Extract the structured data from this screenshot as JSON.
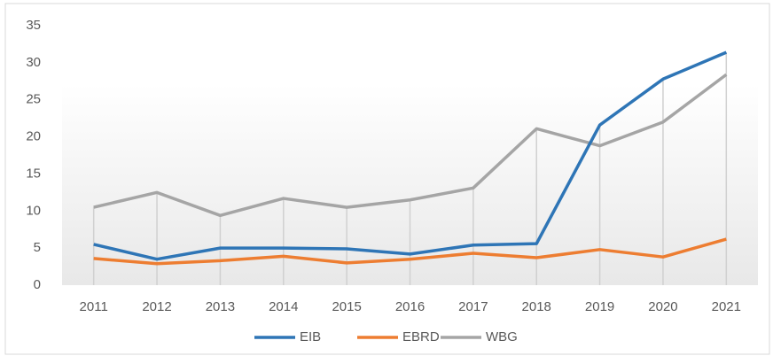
{
  "chart_data": {
    "type": "line",
    "categories": [
      "2011",
      "2012",
      "2013",
      "2014",
      "2015",
      "2016",
      "2017",
      "2018",
      "2019",
      "2020",
      "2021"
    ],
    "series": [
      {
        "name": "EIB",
        "color": "#2e75b6",
        "values": [
          5.5,
          3.5,
          5.0,
          5.0,
          4.9,
          4.2,
          5.4,
          5.6,
          21.6,
          27.8,
          31.4
        ]
      },
      {
        "name": "EBRD",
        "color": "#ed7d31",
        "values": [
          3.6,
          2.9,
          3.3,
          3.9,
          3.0,
          3.5,
          4.3,
          3.7,
          4.8,
          3.8,
          6.2
        ]
      },
      {
        "name": "WBG",
        "color": "#a5a5a5",
        "values": [
          10.5,
          12.5,
          9.4,
          11.7,
          10.5,
          11.5,
          13.1,
          21.1,
          18.8,
          22.0,
          28.4
        ]
      }
    ],
    "ylim": [
      0,
      35
    ],
    "yticks": [
      0,
      5,
      10,
      15,
      20,
      25,
      30,
      35
    ],
    "grid": false,
    "legend": "bottom"
  }
}
